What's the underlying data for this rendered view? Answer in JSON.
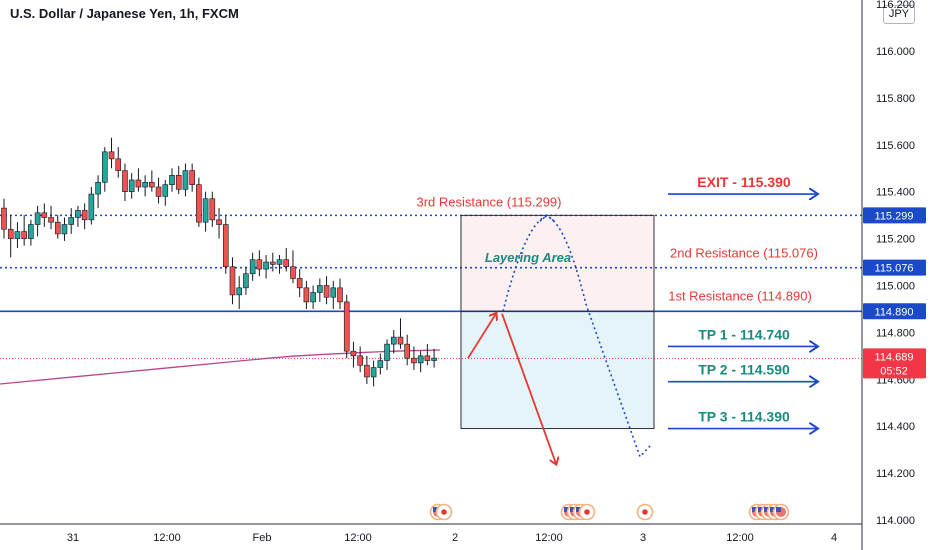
{
  "header": {
    "title": "U.S. Dollar / Japanese Yen, 1h, FXCM",
    "currency_badge": "JPY"
  },
  "colors": {
    "up": "#26a69a",
    "down": "#ef5350",
    "blue": "#1a49c9",
    "red": "#e53935",
    "teal_text": "#1b8a7f",
    "ma": "#b5468f",
    "current": "#f23645"
  },
  "chart_data": {
    "type": "candlestick",
    "title": "U.S. Dollar / Japanese Yen, 1h, FXCM",
    "y_ticks": [
      "116.200",
      "116.000",
      "115.800",
      "115.600",
      "115.400",
      "115.200",
      "115.000",
      "114.800",
      "114.600",
      "114.400",
      "114.200",
      "114.000"
    ],
    "x_ticks": [
      "31",
      "12:00",
      "Feb",
      "12:00",
      "2",
      "12:00",
      "3",
      "12:00",
      "4"
    ],
    "ylim": [
      114.0,
      116.2
    ],
    "candles": [
      {
        "o": 115.33,
        "h": 115.37,
        "l": 115.2,
        "c": 115.24
      },
      {
        "o": 115.24,
        "h": 115.3,
        "l": 115.12,
        "c": 115.2
      },
      {
        "o": 115.2,
        "h": 115.27,
        "l": 115.16,
        "c": 115.23
      },
      {
        "o": 115.23,
        "h": 115.3,
        "l": 115.17,
        "c": 115.2
      },
      {
        "o": 115.2,
        "h": 115.28,
        "l": 115.17,
        "c": 115.26
      },
      {
        "o": 115.26,
        "h": 115.34,
        "l": 115.21,
        "c": 115.31
      },
      {
        "o": 115.31,
        "h": 115.35,
        "l": 115.25,
        "c": 115.29
      },
      {
        "o": 115.29,
        "h": 115.34,
        "l": 115.24,
        "c": 115.27
      },
      {
        "o": 115.27,
        "h": 115.3,
        "l": 115.2,
        "c": 115.22
      },
      {
        "o": 115.22,
        "h": 115.29,
        "l": 115.19,
        "c": 115.26
      },
      {
        "o": 115.26,
        "h": 115.33,
        "l": 115.22,
        "c": 115.29
      },
      {
        "o": 115.29,
        "h": 115.34,
        "l": 115.25,
        "c": 115.32
      },
      {
        "o": 115.32,
        "h": 115.35,
        "l": 115.24,
        "c": 115.28
      },
      {
        "o": 115.28,
        "h": 115.42,
        "l": 115.26,
        "c": 115.39
      },
      {
        "o": 115.39,
        "h": 115.47,
        "l": 115.33,
        "c": 115.44
      },
      {
        "o": 115.44,
        "h": 115.59,
        "l": 115.4,
        "c": 115.57
      },
      {
        "o": 115.57,
        "h": 115.63,
        "l": 115.5,
        "c": 115.54
      },
      {
        "o": 115.54,
        "h": 115.59,
        "l": 115.46,
        "c": 115.49
      },
      {
        "o": 115.49,
        "h": 115.52,
        "l": 115.36,
        "c": 115.4
      },
      {
        "o": 115.4,
        "h": 115.48,
        "l": 115.37,
        "c": 115.45
      },
      {
        "o": 115.45,
        "h": 115.5,
        "l": 115.4,
        "c": 115.42
      },
      {
        "o": 115.42,
        "h": 115.47,
        "l": 115.38,
        "c": 115.44
      },
      {
        "o": 115.44,
        "h": 115.49,
        "l": 115.4,
        "c": 115.42
      },
      {
        "o": 115.42,
        "h": 115.46,
        "l": 115.35,
        "c": 115.38
      },
      {
        "o": 115.38,
        "h": 115.45,
        "l": 115.34,
        "c": 115.43
      },
      {
        "o": 115.43,
        "h": 115.5,
        "l": 115.4,
        "c": 115.47
      },
      {
        "o": 115.47,
        "h": 115.51,
        "l": 115.39,
        "c": 115.41
      },
      {
        "o": 115.41,
        "h": 115.52,
        "l": 115.38,
        "c": 115.49
      },
      {
        "o": 115.49,
        "h": 115.52,
        "l": 115.4,
        "c": 115.43
      },
      {
        "o": 115.43,
        "h": 115.46,
        "l": 115.25,
        "c": 115.27
      },
      {
        "o": 115.27,
        "h": 115.4,
        "l": 115.23,
        "c": 115.37
      },
      {
        "o": 115.37,
        "h": 115.4,
        "l": 115.25,
        "c": 115.28
      },
      {
        "o": 115.28,
        "h": 115.33,
        "l": 115.2,
        "c": 115.26
      },
      {
        "o": 115.26,
        "h": 115.3,
        "l": 115.05,
        "c": 115.08
      },
      {
        "o": 115.08,
        "h": 115.12,
        "l": 114.92,
        "c": 114.96
      },
      {
        "o": 114.96,
        "h": 115.04,
        "l": 114.9,
        "c": 114.99
      },
      {
        "o": 114.99,
        "h": 115.08,
        "l": 114.96,
        "c": 115.05
      },
      {
        "o": 115.05,
        "h": 115.14,
        "l": 115.02,
        "c": 115.11
      },
      {
        "o": 115.11,
        "h": 115.15,
        "l": 115.04,
        "c": 115.07
      },
      {
        "o": 115.07,
        "h": 115.13,
        "l": 115.03,
        "c": 115.1
      },
      {
        "o": 115.1,
        "h": 115.14,
        "l": 115.06,
        "c": 115.09
      },
      {
        "o": 115.09,
        "h": 115.13,
        "l": 115.05,
        "c": 115.11
      },
      {
        "o": 115.11,
        "h": 115.16,
        "l": 115.06,
        "c": 115.08
      },
      {
        "o": 115.08,
        "h": 115.15,
        "l": 115.01,
        "c": 115.03
      },
      {
        "o": 115.03,
        "h": 115.07,
        "l": 114.95,
        "c": 114.99
      },
      {
        "o": 114.99,
        "h": 115.02,
        "l": 114.9,
        "c": 114.93
      },
      {
        "o": 114.93,
        "h": 115.0,
        "l": 114.9,
        "c": 114.97
      },
      {
        "o": 114.97,
        "h": 115.03,
        "l": 114.93,
        "c": 115.0
      },
      {
        "o": 115.0,
        "h": 115.04,
        "l": 114.92,
        "c": 114.95
      },
      {
        "o": 114.95,
        "h": 115.02,
        "l": 114.9,
        "c": 114.99
      },
      {
        "o": 114.99,
        "h": 115.03,
        "l": 114.9,
        "c": 114.93
      },
      {
        "o": 114.93,
        "h": 114.96,
        "l": 114.69,
        "c": 114.72
      },
      {
        "o": 114.72,
        "h": 114.76,
        "l": 114.65,
        "c": 114.7
      },
      {
        "o": 114.7,
        "h": 114.74,
        "l": 114.63,
        "c": 114.66
      },
      {
        "o": 114.66,
        "h": 114.7,
        "l": 114.58,
        "c": 114.61
      },
      {
        "o": 114.61,
        "h": 114.68,
        "l": 114.57,
        "c": 114.65
      },
      {
        "o": 114.65,
        "h": 114.71,
        "l": 114.62,
        "c": 114.68
      },
      {
        "o": 114.68,
        "h": 114.77,
        "l": 114.64,
        "c": 114.75
      },
      {
        "o": 114.75,
        "h": 114.81,
        "l": 114.71,
        "c": 114.78
      },
      {
        "o": 114.78,
        "h": 114.86,
        "l": 114.73,
        "c": 114.75
      },
      {
        "o": 114.75,
        "h": 114.79,
        "l": 114.66,
        "c": 114.69
      },
      {
        "o": 114.69,
        "h": 114.74,
        "l": 114.64,
        "c": 114.67
      },
      {
        "o": 114.67,
        "h": 114.72,
        "l": 114.63,
        "c": 114.7
      },
      {
        "o": 114.7,
        "h": 114.75,
        "l": 114.66,
        "c": 114.68
      },
      {
        "o": 114.68,
        "h": 114.73,
        "l": 114.65,
        "c": 114.69
      }
    ],
    "moving_average": [
      114.58,
      114.6,
      114.62,
      114.64,
      114.66,
      114.68,
      114.7,
      114.71,
      114.72,
      114.725
    ],
    "levels": [
      {
        "name": "3rd Resistance",
        "value": 115.299,
        "style": "dotted",
        "badge": "115.299"
      },
      {
        "name": "2nd Resistance",
        "value": 115.076,
        "style": "dotted",
        "badge": "115.076"
      },
      {
        "name": "1st Resistance",
        "value": 114.89,
        "style": "solid",
        "badge": "114.890"
      }
    ],
    "current_price": {
      "value": 114.689,
      "label": "114.689",
      "countdown": "05:52"
    },
    "layering_zone": {
      "top": 115.299,
      "mid": 114.89,
      "bottom": 114.39
    },
    "annotations": {
      "res3": "3rd Resistance (115.299)",
      "res2": "2nd Resistance (115.076)",
      "res1": "1st Resistance (114.890)",
      "layering": "Layering Area"
    },
    "targets": [
      {
        "label": "EXIT - 115.390",
        "value": 115.39,
        "color": "red"
      },
      {
        "label": "TP 1 - 114.740",
        "value": 114.74,
        "color": "teal"
      },
      {
        "label": "TP 2 - 114.590",
        "value": 114.59,
        "color": "teal"
      },
      {
        "label": "TP 3 - 114.390",
        "value": 114.39,
        "color": "teal"
      }
    ],
    "paths": {
      "up_arrow": [
        [
          114.69
        ],
        [
          114.88
        ]
      ],
      "down_arrow": [
        [
          114.88
        ],
        [
          114.24
        ]
      ],
      "dotted_path": [
        [
          114.89
        ],
        [
          115.3
        ],
        [
          114.27
        ]
      ]
    },
    "events": [
      {
        "flags": [
          "us",
          "jp"
        ]
      },
      {
        "flags": [
          "us",
          "us",
          "us",
          "jp"
        ]
      },
      {
        "flags": [
          "jp"
        ]
      },
      {
        "flags": [
          "us",
          "us",
          "us",
          "us",
          "us"
        ]
      }
    ]
  }
}
